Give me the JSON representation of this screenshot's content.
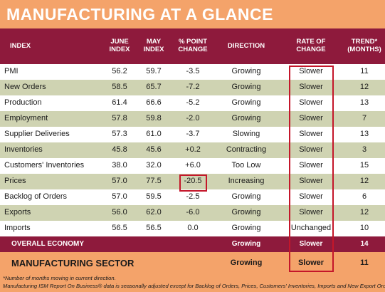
{
  "title": "MANUFACTURING AT A GLANCE",
  "headers": {
    "index": "INDEX",
    "june_1": "JUNE",
    "june_2": "INDEX",
    "may_1": "MAY",
    "may_2": "INDEX",
    "pct_1": "% POINT",
    "pct_2": "CHANGE",
    "direction": "DIRECTION",
    "rate_1": "RATE OF",
    "rate_2": "CHANGE",
    "trend_1": "TREND*",
    "trend_2": "(MONTHS)"
  },
  "rows": [
    {
      "index": "PMI",
      "june": "56.2",
      "may": "59.7",
      "change": "-3.5",
      "direction": "Growing",
      "rate": "Slower",
      "trend": "11"
    },
    {
      "index": "New Orders",
      "june": "58.5",
      "may": "65.7",
      "change": "-7.2",
      "direction": "Growing",
      "rate": "Slower",
      "trend": "12"
    },
    {
      "index": "Production",
      "june": "61.4",
      "may": "66.6",
      "change": "-5.2",
      "direction": "Growing",
      "rate": "Slower",
      "trend": "13"
    },
    {
      "index": "Employment",
      "june": "57.8",
      "may": "59.8",
      "change": "-2.0",
      "direction": "Growing",
      "rate": "Slower",
      "trend": "7"
    },
    {
      "index": "Supplier Deliveries",
      "june": "57.3",
      "may": "61.0",
      "change": "-3.7",
      "direction": "Slowing",
      "rate": "Slower",
      "trend": "13"
    },
    {
      "index": "Inventories",
      "june": "45.8",
      "may": "45.6",
      "change": "+0.2",
      "direction": "Contracting",
      "rate": "Slower",
      "trend": "3"
    },
    {
      "index": "Customers' Inventories",
      "june": "38.0",
      "may": "32.0",
      "change": "+6.0",
      "direction": "Too Low",
      "rate": "Slower",
      "trend": "15"
    },
    {
      "index": "Prices",
      "june": "57.0",
      "may": "77.5",
      "change": "-20.5",
      "direction": "Increasing",
      "rate": "Slower",
      "trend": "12"
    },
    {
      "index": "Backlog of Orders",
      "june": "57.0",
      "may": "59.5",
      "change": "-2.5",
      "direction": "Growing",
      "rate": "Slower",
      "trend": "6"
    },
    {
      "index": "Exports",
      "june": "56.0",
      "may": "62.0",
      "change": "-6.0",
      "direction": "Growing",
      "rate": "Slower",
      "trend": "12"
    },
    {
      "index": "Imports",
      "june": "56.5",
      "may": "56.5",
      "change": "0.0",
      "direction": "Growing",
      "rate": "Unchanged",
      "trend": "10"
    }
  ],
  "overall": {
    "label": "OVERALL ECONOMY",
    "direction": "Growing",
    "rate": "Slower",
    "trend": "14"
  },
  "sector": {
    "label": "MANUFACTURING SECTOR",
    "direction": "Growing",
    "rate": "Slower",
    "trend": "11"
  },
  "footnote_1": "*Number of months moving in current direction.",
  "footnote_2": "Manufacturing ISM Report On Business® data is seasonally adjusted except for Backlog of Orders, Prices, Customers' Inventories, Imports and New Export Orders.",
  "colors": {
    "header": "#8e1a3c",
    "band": "#cfd3b2",
    "accent": "#f4a36a",
    "highlight": "#c4162a"
  }
}
